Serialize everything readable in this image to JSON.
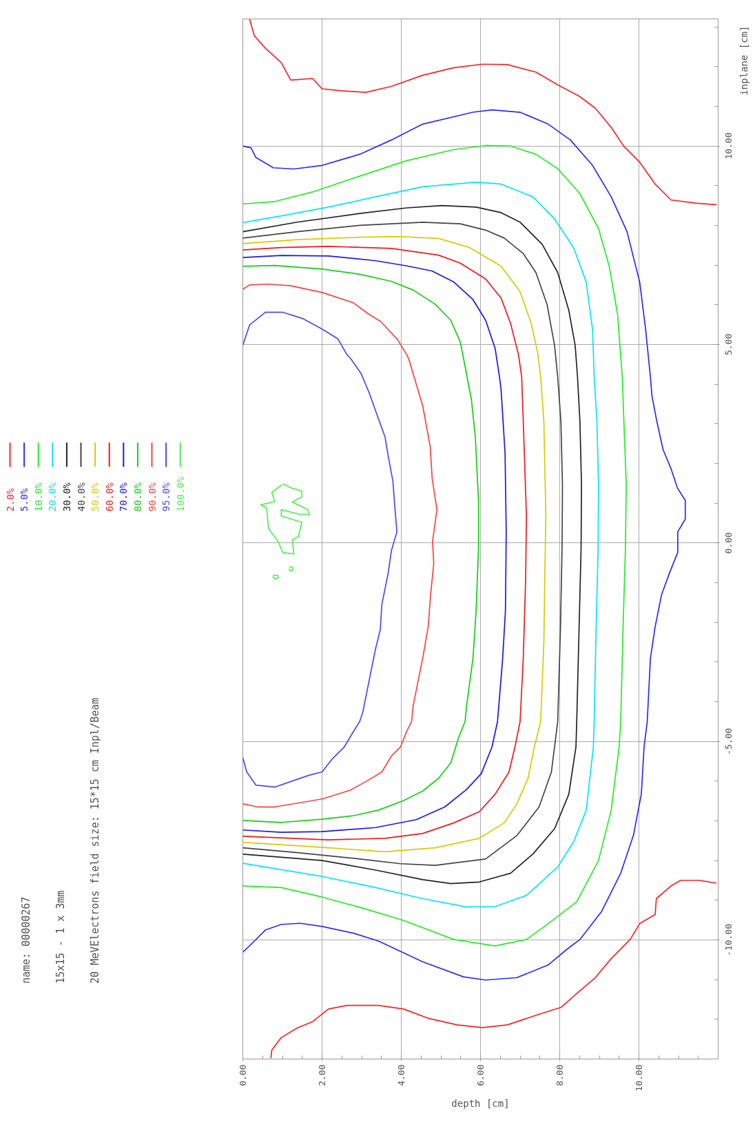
{
  "chart_data": {
    "type": "line",
    "annotations": [
      "name: 00000267",
      "15x15 - 1 x 3mm",
      "20 MeVElectrons  field size: 15*15 cm  Inpl/Beam"
    ],
    "xlabel": "depth [cm]",
    "ylabel": "inplane [cm]",
    "xlim": [
      0,
      12
    ],
    "ylim": [
      -13,
      13.2
    ],
    "xticks": [
      {
        "value": 0,
        "label": "0.00"
      },
      {
        "value": 2,
        "label": "2.00"
      },
      {
        "value": 4,
        "label": "4.00"
      },
      {
        "value": 6,
        "label": "6.00"
      },
      {
        "value": 8,
        "label": "8.00"
      },
      {
        "value": 10,
        "label": "10.00"
      }
    ],
    "yticks": [
      {
        "value": -10,
        "label": "-10.00"
      },
      {
        "value": -5,
        "label": "-5.00"
      },
      {
        "value": 0,
        "label": "0.00"
      },
      {
        "value": 5,
        "label": "5.00"
      },
      {
        "value": 10,
        "label": "10.00"
      }
    ],
    "grid": true,
    "legend": "left",
    "line_style": "solid",
    "series": [
      {
        "name": "2.0%",
        "color": "#ff2020",
        "x": [
          0.17,
          0.29,
          0.57,
          0.97,
          1.21,
          1.76,
          2.0,
          2.48,
          3.11,
          3.75,
          4.54,
          5.33,
          6.05,
          6.68,
          7.4,
          7.95,
          8.5,
          8.9,
          9.3,
          9.62,
          10.02,
          10.41,
          10.81,
          11.44,
          11.96
        ],
        "values": [
          13.2,
          12.78,
          12.46,
          12.1,
          11.66,
          11.7,
          11.44,
          11.39,
          11.35,
          11.5,
          11.78,
          11.97,
          12.06,
          12.05,
          11.86,
          11.54,
          11.25,
          10.95,
          10.47,
          9.99,
          9.59,
          9.04,
          8.64,
          8.56,
          8.52
        ]
      },
      {
        "color": "#ff2020",
        "x": [
          0.71,
          0.73,
          0.97,
          1.37,
          1.76,
          2.16,
          2.63,
          3.43,
          4.06,
          4.7,
          5.41,
          6.05,
          6.68,
          7.4,
          8.03,
          8.43,
          8.9,
          9.3,
          9.78,
          10.02,
          10.41,
          10.44,
          10.81,
          11.05,
          11.52,
          11.96
        ],
        "values": [
          -12.98,
          -12.78,
          -12.46,
          -12.22,
          -12.06,
          -11.74,
          -11.65,
          -11.65,
          -11.74,
          -11.98,
          -12.14,
          -12.21,
          -12.14,
          -11.9,
          -11.7,
          -11.35,
          -10.95,
          -10.47,
          -9.99,
          -9.59,
          -9.36,
          -8.96,
          -8.64,
          -8.5,
          -8.5,
          -8.57
        ]
      },
      {
        "name": "5.0%",
        "color": "#2a2aff",
        "x": [
          0,
          0.21,
          0.33,
          0.77,
          1.29,
          2.0,
          2.95,
          3.75,
          4.54,
          5.81,
          6.29,
          7.0,
          7.71,
          8.27,
          8.83,
          9.3,
          9.7,
          10.02,
          10.17,
          10.29,
          10.33,
          10.45,
          10.61,
          10.81,
          10.97,
          11.17,
          11.17,
          10.98,
          10.98,
          10.77,
          10.57,
          10.41,
          10.29,
          10.21,
          10.13,
          10.06,
          9.86,
          9.54,
          9.06,
          8.51,
          8.19,
          7.71,
          6.92,
          6.13,
          5.57,
          4.54,
          3.43,
          2.79,
          2.0,
          1.44,
          0.97,
          0.57,
          0.25,
          0
        ],
        "values": [
          10.0,
          9.95,
          9.71,
          9.45,
          9.42,
          9.51,
          9.79,
          10.15,
          10.55,
          10.85,
          10.91,
          10.85,
          10.55,
          10.15,
          9.51,
          8.72,
          7.84,
          6.57,
          5.37,
          4.18,
          3.7,
          3.07,
          2.35,
          1.87,
          1.39,
          1.07,
          0.6,
          0.28,
          -0.24,
          -0.76,
          -1.31,
          -2.11,
          -2.91,
          -4.5,
          -5.14,
          -6.33,
          -7.37,
          -8.32,
          -9.28,
          -9.99,
          -10.23,
          -10.63,
          -10.95,
          -11.01,
          -10.93,
          -10.55,
          -10.03,
          -9.83,
          -9.66,
          -9.58,
          -9.61,
          -9.75,
          -10.07,
          -10.31
        ]
      },
      {
        "name": "10.0%",
        "color": "#22ee22",
        "x": [
          0,
          0.81,
          1.76,
          2.95,
          4.14,
          5.33,
          6.13,
          6.76,
          7.4,
          7.95,
          8.51,
          8.98,
          9.25,
          9.46,
          9.58,
          9.62,
          9.68,
          9.66,
          9.6,
          9.54,
          9.5,
          9.3,
          8.98,
          8.43,
          7.71,
          7.16,
          6.37,
          5.33,
          4.06,
          3.03,
          2.0,
          0.97,
          0
        ],
        "values": [
          8.54,
          8.6,
          8.84,
          9.24,
          9.63,
          9.91,
          10.01,
          10.0,
          9.79,
          9.43,
          8.8,
          7.92,
          6.97,
          5.77,
          4.18,
          3.07,
          1.47,
          -0.12,
          -2.11,
          -4.5,
          -5.14,
          -6.73,
          -8.0,
          -9.04,
          -9.59,
          -9.99,
          -10.15,
          -9.99,
          -9.51,
          -9.2,
          -8.92,
          -8.68,
          -8.64
        ]
      },
      {
        "name": "20.0%",
        "color": "#00e5ff",
        "x": [
          0,
          0.97,
          2.16,
          3.35,
          4.54,
          5.89,
          6.52,
          7.32,
          7.87,
          8.35,
          8.67,
          8.83,
          8.87,
          8.94,
          8.98,
          8.97,
          8.92,
          8.87,
          8.85,
          8.67,
          8.35,
          7.95,
          7.16,
          6.37,
          5.65,
          4.54,
          3.35,
          2.0,
          0
        ],
        "values": [
          8.07,
          8.24,
          8.46,
          8.72,
          8.97,
          9.09,
          9.04,
          8.72,
          8.16,
          7.44,
          6.57,
          5.37,
          4.18,
          3.07,
          1.47,
          -0.12,
          -2.11,
          -4.5,
          -5.14,
          -6.73,
          -7.53,
          -8.16,
          -8.88,
          -9.16,
          -9.17,
          -8.96,
          -8.68,
          -8.4,
          -8.07
        ]
      },
      {
        "name": "30.0%",
        "color": "#222222",
        "x": [
          0,
          1.37,
          2.95,
          4.14,
          5.02,
          5.89,
          6.52,
          7.0,
          7.56,
          7.95,
          8.23,
          8.39,
          8.45,
          8.51,
          8.55,
          8.54,
          8.49,
          8.43,
          8.41,
          8.23,
          7.87,
          7.32,
          6.76,
          5.97,
          5.25,
          4.54,
          3.35,
          2.0,
          0
        ],
        "values": [
          7.84,
          8.08,
          8.3,
          8.44,
          8.5,
          8.46,
          8.32,
          8.08,
          7.52,
          6.81,
          5.86,
          4.98,
          4.18,
          3.07,
          1.47,
          -0.12,
          -2.11,
          -4.5,
          -5.14,
          -6.33,
          -7.2,
          -7.84,
          -8.32,
          -8.54,
          -8.58,
          -8.48,
          -8.24,
          -8.0,
          -7.84
        ]
      },
      {
        "name": "40.0%",
        "color": "#444444",
        "x": [
          0,
          1.37,
          2.95,
          4.54,
          5.49,
          6.13,
          6.6,
          7.08,
          7.4,
          7.68,
          7.87,
          7.95,
          8.03,
          8.07,
          8.06,
          8.02,
          7.95,
          7.79,
          7.48,
          6.92,
          6.13,
          4.86,
          3.98,
          2.95,
          1.37,
          0
        ],
        "values": [
          7.68,
          7.84,
          8.0,
          8.08,
          8.04,
          7.88,
          7.68,
          7.29,
          6.81,
          6.01,
          4.98,
          4.18,
          3.07,
          1.47,
          -0.12,
          -2.11,
          -4.5,
          -5.77,
          -6.65,
          -7.37,
          -7.96,
          -8.12,
          -8.08,
          -7.96,
          -7.8,
          -7.68
        ]
      },
      {
        "name": "50.0%",
        "color": "#d4cc00",
        "x": [
          0,
          1.37,
          2.95,
          3.9,
          4.94,
          5.73,
          6.52,
          7.0,
          7.28,
          7.44,
          7.52,
          7.6,
          7.65,
          7.63,
          7.6,
          7.52,
          7.36,
          7.2,
          6.92,
          6.6,
          5.97,
          4.86,
          3.59,
          2.16,
          0
        ],
        "values": [
          7.54,
          7.64,
          7.7,
          7.72,
          7.67,
          7.44,
          6.97,
          6.33,
          5.53,
          4.82,
          4.18,
          3.07,
          0.68,
          -0.52,
          -2.51,
          -4.5,
          -5.14,
          -5.93,
          -6.57,
          -7.05,
          -7.44,
          -7.68,
          -7.78,
          -7.68,
          -7.54
        ]
      },
      {
        "name": "60.0%",
        "color": "#f01818",
        "x": [
          0,
          0.97,
          2.16,
          3.75,
          4.94,
          5.49,
          6.13,
          6.52,
          6.76,
          6.96,
          7.04,
          7.08,
          7.16,
          7.14,
          7.08,
          7.0,
          6.87,
          6.72,
          6.37,
          5.97,
          5.33,
          4.54,
          3.59,
          2.16,
          0
        ],
        "values": [
          7.38,
          7.44,
          7.47,
          7.42,
          7.25,
          7.05,
          6.65,
          6.17,
          5.53,
          4.74,
          4.18,
          3.07,
          0.68,
          -0.92,
          -2.91,
          -4.5,
          -5.14,
          -5.77,
          -6.33,
          -6.77,
          -7.05,
          -7.32,
          -7.44,
          -7.48,
          -7.39
        ]
      },
      {
        "name": "70.0%",
        "color": "#1818f0",
        "x": [
          0,
          0.97,
          2.16,
          3.35,
          4.14,
          4.78,
          5.33,
          5.81,
          6.13,
          6.37,
          6.48,
          6.52,
          6.62,
          6.65,
          6.63,
          6.56,
          6.43,
          6.29,
          6.02,
          5.65,
          5.1,
          4.38,
          3.35,
          2.0,
          0.97,
          0
        ],
        "values": [
          7.19,
          7.24,
          7.23,
          7.11,
          6.98,
          6.85,
          6.57,
          6.13,
          5.61,
          4.9,
          4.18,
          3.86,
          2.27,
          0.28,
          -1.71,
          -2.91,
          -4.5,
          -5.14,
          -5.81,
          -6.21,
          -6.65,
          -6.97,
          -7.17,
          -7.27,
          -7.29,
          -7.23
        ]
      },
      {
        "name": "80.0%",
        "color": "#10d010",
        "x": [
          0,
          0.81,
          2.0,
          2.95,
          3.75,
          4.3,
          4.86,
          5.25,
          5.49,
          5.57,
          5.77,
          5.87,
          5.95,
          5.95,
          5.89,
          5.81,
          5.65,
          5.61,
          5.45,
          5.25,
          4.94,
          4.54,
          4.06,
          3.43,
          2.79,
          2.0,
          0.97,
          0
        ],
        "values": [
          6.97,
          6.99,
          6.9,
          6.77,
          6.59,
          6.37,
          6.01,
          5.61,
          5.06,
          4.66,
          3.62,
          2.67,
          1.07,
          -0.12,
          -1.71,
          -2.91,
          -4.1,
          -4.5,
          -4.9,
          -5.54,
          -5.93,
          -6.25,
          -6.49,
          -6.73,
          -6.87,
          -6.96,
          -7.04,
          -6.99
        ]
      },
      {
        "name": "90.0%",
        "color": "#ff4040",
        "x": [
          0,
          0.17,
          0.65,
          1.21,
          2.0,
          2.79,
          3.17,
          3.49,
          3.9,
          4.14,
          4.18,
          4.3,
          4.54,
          4.73,
          4.78,
          4.9,
          4.79,
          4.82,
          4.74,
          4.68,
          4.54,
          4.3,
          4.26,
          4.14,
          3.98,
          3.75,
          3.51,
          3.11,
          2.71,
          2.0,
          0.81,
          0.37,
          0
        ],
        "values": [
          6.39,
          6.5,
          6.52,
          6.48,
          6.31,
          6.05,
          5.77,
          5.57,
          5.13,
          4.74,
          4.66,
          4.26,
          3.46,
          2.43,
          1.63,
          0.84,
          0.04,
          -0.52,
          -1.31,
          -2.11,
          -2.91,
          -4.1,
          -4.5,
          -4.74,
          -5.14,
          -5.37,
          -5.77,
          -6.01,
          -6.23,
          -6.45,
          -6.65,
          -6.65,
          -6.57
        ]
      },
      {
        "name": "95.0%",
        "color": "#4848ff",
        "x": [
          0,
          0.17,
          0.57,
          1.01,
          1.52,
          2.0,
          2.4,
          2.63,
          2.71,
          2.99,
          3.19,
          3.39,
          3.59,
          3.67,
          3.79,
          3.83,
          3.89,
          3.75,
          3.67,
          3.51,
          3.47,
          3.35,
          3.19,
          3.03,
          2.95,
          2.75,
          2.56,
          2.24,
          2.0,
          1.68,
          1.21,
          0.81,
          0.33,
          0.1,
          0
        ],
        "values": [
          4.98,
          5.49,
          5.81,
          5.81,
          5.65,
          5.39,
          5.14,
          4.74,
          4.66,
          4.26,
          3.78,
          3.22,
          2.67,
          2.19,
          1.55,
          1.0,
          0.28,
          -0.2,
          -0.76,
          -1.55,
          -2.19,
          -2.67,
          -3.46,
          -4.26,
          -4.5,
          -4.82,
          -5.14,
          -5.46,
          -5.77,
          -5.85,
          -6.01,
          -6.15,
          -6.1,
          -5.77,
          -5.41
        ]
      },
      {
        "name": "100.0%",
        "color": "#50f050",
        "x": [
          1.01,
          1.21,
          1.49,
          1.49,
          1.25,
          1.64,
          1.68,
          1.44,
          0.97,
          0.97,
          1.49,
          1.4,
          1.25,
          1.29,
          1.01,
          0.89,
          0.65,
          0.6,
          0.45,
          0.81,
          0.73,
          0.99
        ],
        "values": [
          1.49,
          1.39,
          1.31,
          1.16,
          1.03,
          0.84,
          0.72,
          0.72,
          0.84,
          0.68,
          0.52,
          0.16,
          0.08,
          -0.28,
          -0.24,
          0.04,
          0.36,
          0.88,
          0.96,
          1.04,
          1.27,
          1.47
        ]
      },
      {
        "color": "#50f050",
        "x": [
          1.17,
          1.25,
          1.26,
          1.21,
          1.16
        ],
        "values": [
          -0.6,
          -0.61,
          -0.68,
          -0.71,
          -0.65
        ]
      },
      {
        "color": "#50f050",
        "x": [
          0.76,
          0.88,
          0.9,
          0.83,
          0.75
        ],
        "values": [
          -0.82,
          -0.81,
          -0.87,
          -0.91,
          -0.85
        ]
      }
    ]
  }
}
